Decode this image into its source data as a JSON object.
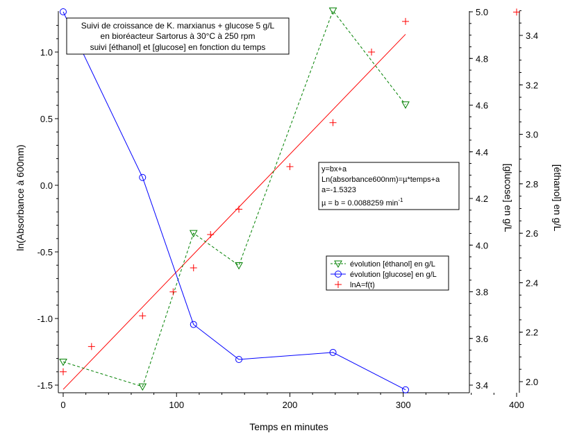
{
  "chart_data": {
    "type": "line",
    "title": "",
    "x": {
      "label": "Temps en minutes",
      "range": [
        0,
        400
      ],
      "ticks": [
        0,
        100,
        200,
        300,
        400
      ]
    },
    "y_left": {
      "label": "ln(Absorbance à 600nm)",
      "range": [
        -1.55,
        1.3
      ],
      "ticks": [
        -1.5,
        -1.0,
        -0.5,
        0.0,
        0.5,
        1.0
      ],
      "tick_labels": [
        "-1.5",
        "-1.0",
        "-0.5",
        "0.0",
        "0.5",
        "1.0"
      ]
    },
    "y_glucose": {
      "label": "[glucose] en g/L",
      "range": [
        3.38,
        5.0
      ],
      "ticks": [
        3.4,
        3.6,
        3.8,
        4.0,
        4.2,
        4.4,
        4.6,
        4.8,
        5.0
      ],
      "tick_labels": [
        "3.4",
        "3.6",
        "3.8",
        "4.0",
        "4.2",
        "4.4",
        "4.6",
        "4.8",
        "5.0"
      ]
    },
    "y_ethanol": {
      "label": "[éthanol] en g/L",
      "range": [
        1.97,
        3.5
      ],
      "ticks": [
        2.0,
        2.2,
        2.4,
        2.6,
        2.8,
        3.0,
        3.2,
        3.4
      ],
      "tick_labels": [
        "2.0",
        "2.2",
        "2.4",
        "2.6",
        "2.8",
        "3.0",
        "3.2",
        "3.4"
      ]
    },
    "series": [
      {
        "name": "évolution [éthanol] en g/L",
        "axis": "y_ethanol",
        "color": "#008000",
        "marker": "triangle-down",
        "line": "dashed",
        "points": [
          [
            0,
            2.08
          ],
          [
            70,
            1.98
          ],
          [
            115,
            2.6
          ],
          [
            155,
            2.47
          ],
          [
            238,
            3.5
          ],
          [
            302,
            3.12
          ]
        ]
      },
      {
        "name": "évolution [glucose] en g/L",
        "axis": "y_glucose",
        "color": "#0000ff",
        "marker": "circle",
        "line": "solid",
        "points": [
          [
            0,
            5.0
          ],
          [
            70,
            4.29
          ],
          [
            115,
            3.66
          ],
          [
            155,
            3.51
          ],
          [
            238,
            3.54
          ],
          [
            302,
            3.38
          ]
        ]
      },
      {
        "name": "lnA=f(t)",
        "axis": "y_left",
        "color": "#ff0000",
        "marker": "plus",
        "line": "none",
        "points": [
          [
            0,
            -1.4
          ],
          [
            25,
            -1.21
          ],
          [
            70,
            -0.98
          ],
          [
            97,
            -0.8
          ],
          [
            115,
            -0.62
          ],
          [
            130,
            -0.37
          ],
          [
            155,
            -0.18
          ],
          [
            200,
            0.14
          ],
          [
            238,
            0.47
          ],
          [
            272,
            1.0
          ],
          [
            302,
            1.23
          ],
          [
            400,
            1.3
          ]
        ]
      }
    ],
    "fit": {
      "axis": "y_left",
      "color": "#ff0000",
      "slope": 0.0088259,
      "intercept": -1.5323,
      "x_range": [
        0,
        302
      ]
    },
    "title_box": [
      "Suivi de croissance de K. marxianus + glucose 5 g/L",
      "en bioréacteur Sartorus à 30°C à 250 rpm",
      "suivi [éthanol] et [glucose] en fonction du temps"
    ],
    "fit_box": {
      "line1": "y=bx+a",
      "line2": "Ln(absorbance600nm)=µ*temps+a",
      "line3": "a=-1.5323",
      "line4_prefix": "µ = b = 0.0088259 min",
      "line4_exp": "-1"
    },
    "legend": {
      "entries": [
        "évolution [éthanol] en g/L",
        "évolution [glucose] en g/L",
        "lnA=f(t)"
      ]
    }
  }
}
